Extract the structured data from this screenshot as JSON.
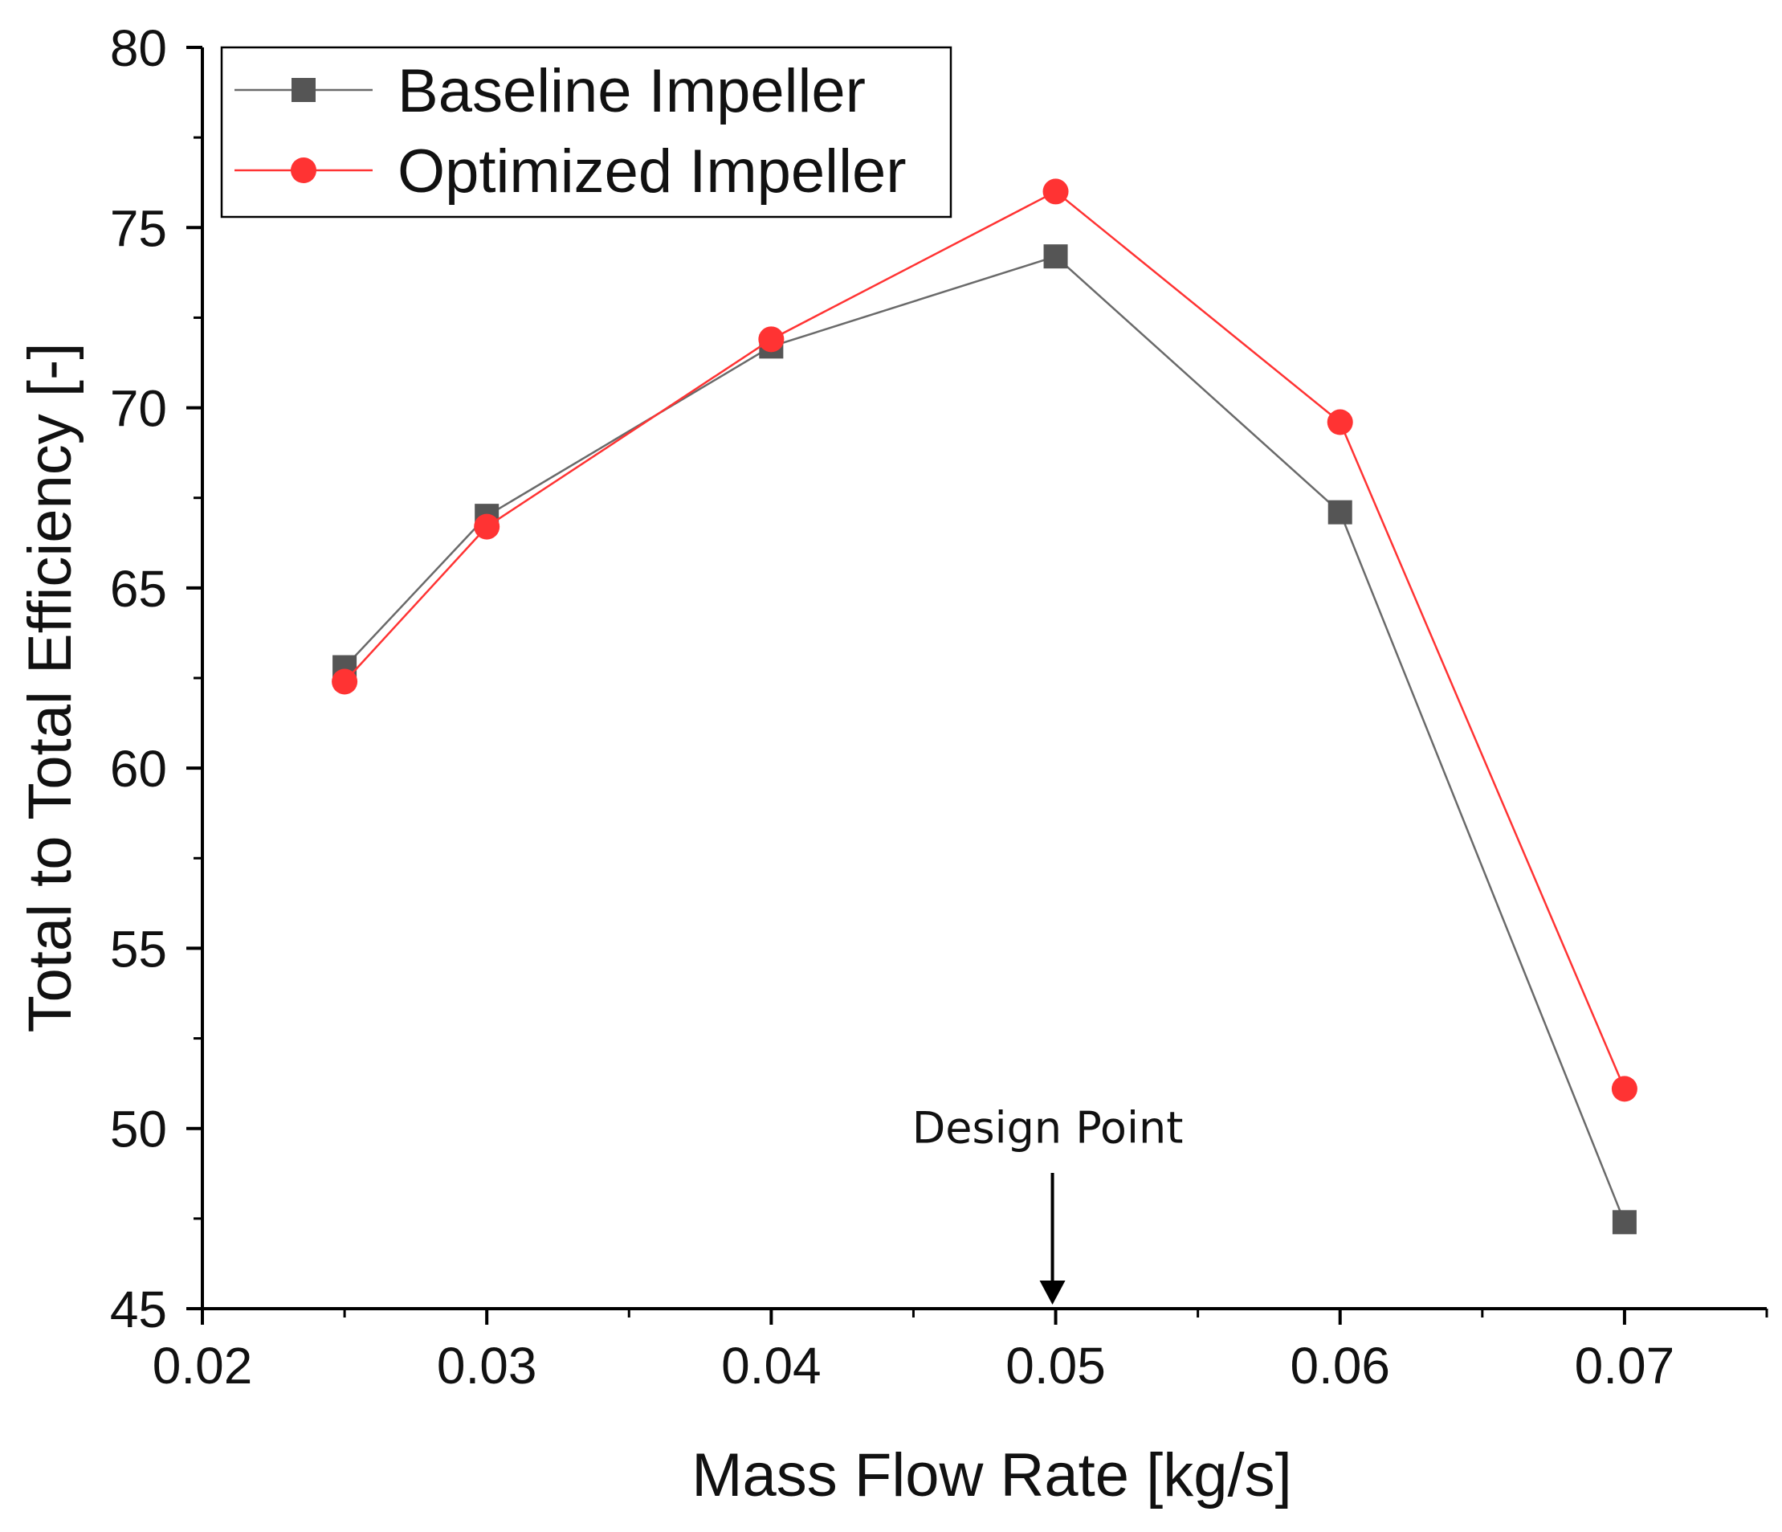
{
  "chart_data": {
    "type": "line",
    "title": "",
    "xlabel": "Mass Flow Rate [kg/s]",
    "ylabel": "Total to Total Efficiency [-]",
    "xlim": [
      0.02,
      0.075
    ],
    "ylim": [
      45,
      80
    ],
    "xticks": [
      0.02,
      0.03,
      0.04,
      0.05,
      0.06,
      0.07
    ],
    "xtick_labels": [
      "0.02",
      "0.03",
      "0.04",
      "0.05",
      "0.06",
      "0.07"
    ],
    "x_minor_ticks": [
      0.025,
      0.035,
      0.045,
      0.055,
      0.065,
      0.075
    ],
    "yticks": [
      45,
      50,
      55,
      60,
      65,
      70,
      75,
      80
    ],
    "ytick_labels": [
      "45",
      "50",
      "55",
      "60",
      "65",
      "70",
      "75",
      "80"
    ],
    "y_minor_ticks": [
      47.5,
      52.5,
      57.5,
      62.5,
      67.5,
      72.5,
      77.5
    ],
    "grid": false,
    "legend_position": "top-left",
    "series": [
      {
        "name": "Baseline Impeller",
        "color": "#555555",
        "line_color": "#6a6a6a",
        "marker": "square",
        "x": [
          0.025,
          0.03,
          0.04,
          0.05,
          0.06,
          0.07
        ],
        "y": [
          62.8,
          67.0,
          71.7,
          74.2,
          67.1,
          47.4
        ]
      },
      {
        "name": "Optimized Impeller",
        "color": "#ff3333",
        "line_color": "#ff3333",
        "marker": "circle",
        "x": [
          0.025,
          0.03,
          0.04,
          0.05,
          0.06,
          0.07
        ],
        "y": [
          62.4,
          66.7,
          71.9,
          76.0,
          69.6,
          51.1
        ]
      }
    ],
    "annotations": [
      {
        "text": "Design Point",
        "x": 0.05,
        "y": 50,
        "arrow_to_y": 45
      }
    ]
  }
}
